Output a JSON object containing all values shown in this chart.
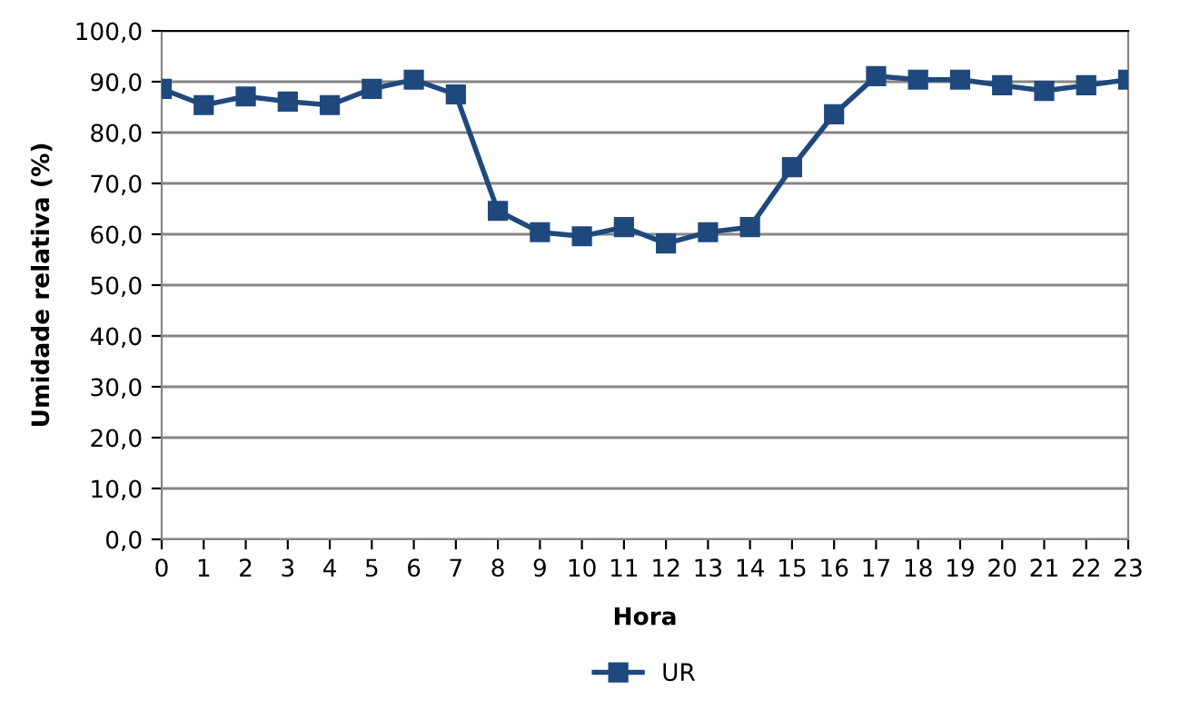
{
  "chart_data": {
    "type": "line",
    "xlabel": "Hora",
    "ylabel": "Umidade relativa (%)",
    "categories": [
      "0",
      "1",
      "2",
      "3",
      "4",
      "5",
      "6",
      "7",
      "8",
      "9",
      "10",
      "11",
      "12",
      "13",
      "14",
      "15",
      "16",
      "17",
      "18",
      "19",
      "20",
      "21",
      "22",
      "23"
    ],
    "series": [
      {
        "name": "UR",
        "color": "#1f497d",
        "values": [
          88.6,
          85.4,
          87.1,
          86.1,
          85.4,
          88.6,
          90.4,
          87.5,
          64.6,
          60.4,
          59.6,
          61.4,
          58.2,
          60.4,
          61.4,
          73.2,
          83.6,
          91.1,
          90.4,
          90.4,
          89.3,
          88.2,
          89.3,
          90.4
        ]
      }
    ],
    "ylim": [
      0,
      100
    ],
    "yticks": [
      {
        "value": 0,
        "label": "0,0"
      },
      {
        "value": 10,
        "label": "10,0"
      },
      {
        "value": 20,
        "label": "20,0"
      },
      {
        "value": 30,
        "label": "30,0"
      },
      {
        "value": 40,
        "label": "40,0"
      },
      {
        "value": 50,
        "label": "50,0"
      },
      {
        "value": 60,
        "label": "60,0"
      },
      {
        "value": 70,
        "label": "70,0"
      },
      {
        "value": 80,
        "label": "80,0"
      },
      {
        "value": 90,
        "label": "90,0"
      },
      {
        "value": 100,
        "label": "100,0"
      }
    ],
    "grid": "y",
    "legend": "bottom",
    "marker": "square",
    "line_style": "solid"
  }
}
